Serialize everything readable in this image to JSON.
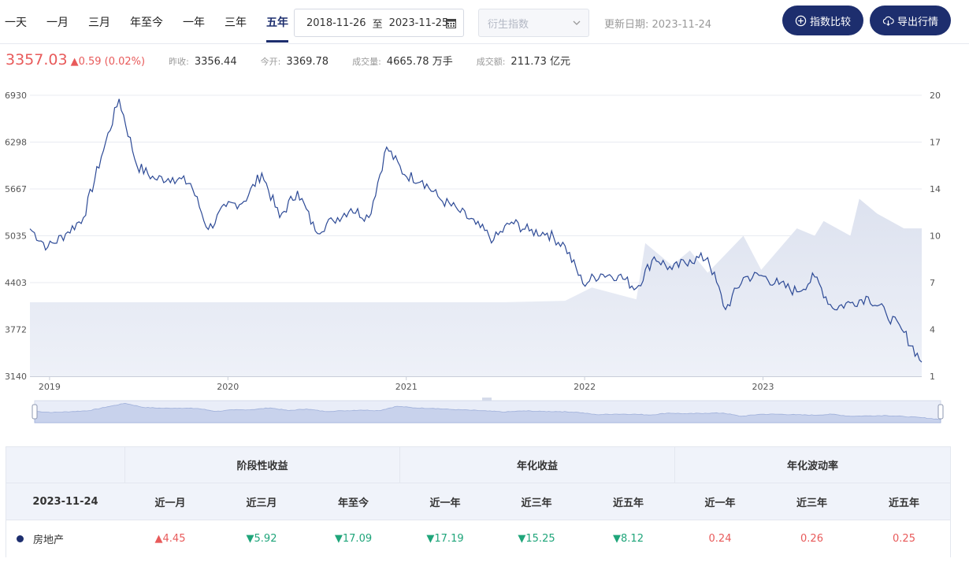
{
  "tabs": [
    "一天",
    "一月",
    "三月",
    "年至今",
    "一年",
    "三年",
    "五年"
  ],
  "active_tab": "五年",
  "date_range": {
    "start": "2018-11-26",
    "sep": "至",
    "end": "2023-11-25"
  },
  "derive_select": {
    "placeholder": "衍生指数"
  },
  "update_date": "更新日期: 2023-11-24",
  "buttons": {
    "compare": "指数比较",
    "export": "导出行情"
  },
  "quote": {
    "price": "3357.03",
    "change": "▲0.59 (0.02%)",
    "prev_close_label": "昨收:",
    "prev_close": "3356.44",
    "open_label": "今开:",
    "open": "3369.78",
    "volume_label": "成交量:",
    "volume": "4665.78 万手",
    "turnover_label": "成交额:",
    "turnover": "211.73 亿元"
  },
  "colors": {
    "accent": "#1d2e6e",
    "up": "#e85a5a",
    "down": "#1fa57a",
    "line": "#2d4a96",
    "area": "#dde2ef"
  },
  "chart_data": {
    "type": "line",
    "y_ticks_left": [
      "6930",
      "6298",
      "5667",
      "5035",
      "4403",
      "3772",
      "3140"
    ],
    "y_ticks_right": [
      "20",
      "17",
      "14",
      "10",
      "7",
      "4",
      "1"
    ],
    "x_ticks": [
      "2019",
      "2020",
      "2021",
      "2022",
      "2023"
    ],
    "ylim_left": [
      3140,
      6930
    ],
    "ylim_right": [
      1,
      20
    ],
    "grid": true,
    "series": [
      {
        "kind": "line",
        "x": [
          0.0,
          0.02,
          0.04,
          0.06,
          0.08,
          0.1,
          0.12,
          0.14,
          0.16,
          0.18,
          0.2,
          0.22,
          0.24,
          0.26,
          0.28,
          0.3,
          0.32,
          0.34,
          0.36,
          0.38,
          0.4,
          0.42,
          0.44,
          0.46,
          0.48,
          0.5,
          0.52,
          0.54,
          0.56,
          0.58,
          0.6,
          0.62,
          0.64,
          0.66,
          0.68,
          0.7,
          0.72,
          0.74,
          0.76,
          0.78,
          0.8,
          0.82,
          0.84,
          0.86,
          0.88,
          0.9,
          0.92,
          0.94,
          0.96,
          0.98,
          1.0
        ],
        "values": [
          5130,
          4880,
          5060,
          5280,
          6100,
          6880,
          5980,
          5800,
          5820,
          5740,
          5120,
          5430,
          5500,
          5880,
          5280,
          5640,
          5100,
          5240,
          5400,
          5280,
          6230,
          5860,
          5780,
          5530,
          5380,
          5190,
          4980,
          5220,
          5100,
          5070,
          4900,
          4390,
          4520,
          4500,
          4330,
          4750,
          4580,
          4710,
          4740,
          4040,
          4470,
          4500,
          4380,
          4280,
          4480,
          4060,
          4130,
          4210,
          3990,
          3730,
          3330
        ]
      },
      {
        "kind": "area",
        "x": [
          0.0,
          0.53,
          0.53,
          0.6,
          0.63,
          0.68,
          0.69,
          0.72,
          0.74,
          0.76,
          0.8,
          0.82,
          0.86,
          0.88,
          0.89,
          0.92,
          0.93,
          0.95,
          0.98,
          1.0
        ],
        "values": [
          6.0,
          6.0,
          6.0,
          6.1,
          7.0,
          6.2,
          10.0,
          8.5,
          9.5,
          8.0,
          10.5,
          8.2,
          11.0,
          10.5,
          11.5,
          10.5,
          13.0,
          12.0,
          11.0,
          11.0
        ]
      }
    ]
  },
  "perf_table": {
    "groups": [
      "阶段性收益",
      "年化收益",
      "年化波动率"
    ],
    "date_header": "2023-11-24",
    "columns": [
      "近一月",
      "近三月",
      "年至今",
      "近一年",
      "近三年",
      "近五年",
      "近一年",
      "近三年",
      "近五年"
    ],
    "row": {
      "name": "房地产",
      "values": [
        "▲4.45",
        "▼5.92",
        "▼17.09",
        "▼17.19",
        "▼15.25",
        "▼8.12",
        "0.24",
        "0.26",
        "0.25"
      ]
    }
  }
}
